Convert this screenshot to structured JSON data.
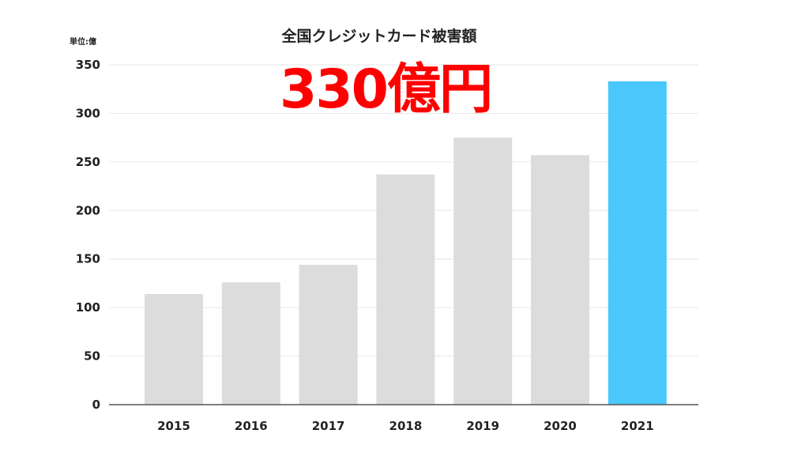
{
  "colors": {
    "bar_default": "#dcdcdc",
    "bar_highlight": "#4ac8fb",
    "highlight_text": "#ff0000",
    "gridline": "#e6e6e6",
    "axis": "#555555"
  },
  "annotation": {
    "text": "330億円"
  },
  "chart_data": {
    "type": "bar",
    "title": "全国クレジットカード被害額",
    "unit_label": "単位:億",
    "categories": [
      "2015",
      "2016",
      "2017",
      "2018",
      "2019",
      "2020",
      "2021"
    ],
    "values": [
      114,
      126,
      144,
      237,
      275,
      257,
      333
    ],
    "highlighted_category": "2021",
    "ylim": [
      0,
      350
    ],
    "yticks": [
      0,
      50,
      100,
      150,
      200,
      250,
      300,
      350
    ],
    "grid": true,
    "legend": "none"
  }
}
